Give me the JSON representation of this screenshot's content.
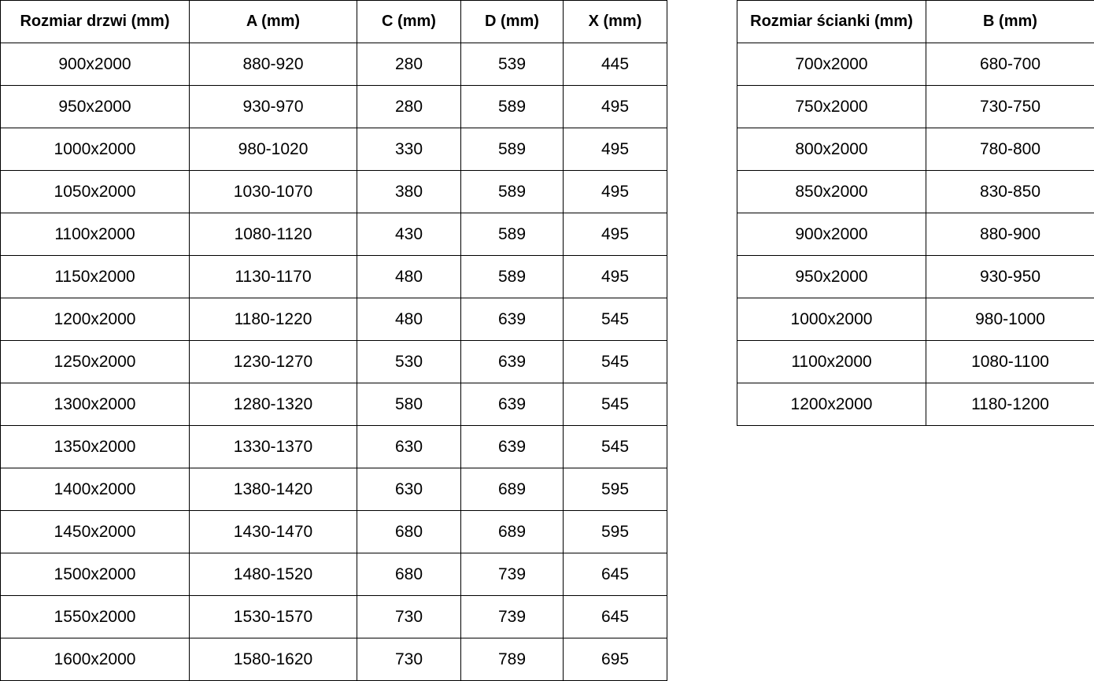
{
  "door_table": {
    "headers": [
      "Rozmiar drzwi (mm)",
      "A (mm)",
      "C (mm)",
      "D (mm)",
      "X (mm)"
    ],
    "rows": [
      [
        "900x2000",
        "880-920",
        "280",
        "539",
        "445"
      ],
      [
        "950x2000",
        "930-970",
        "280",
        "589",
        "495"
      ],
      [
        "1000x2000",
        "980-1020",
        "330",
        "589",
        "495"
      ],
      [
        "1050x2000",
        "1030-1070",
        "380",
        "589",
        "495"
      ],
      [
        "1100x2000",
        "1080-1120",
        "430",
        "589",
        "495"
      ],
      [
        "1150x2000",
        "1130-1170",
        "480",
        "589",
        "495"
      ],
      [
        "1200x2000",
        "1180-1220",
        "480",
        "639",
        "545"
      ],
      [
        "1250x2000",
        "1230-1270",
        "530",
        "639",
        "545"
      ],
      [
        "1300x2000",
        "1280-1320",
        "580",
        "639",
        "545"
      ],
      [
        "1350x2000",
        "1330-1370",
        "630",
        "639",
        "545"
      ],
      [
        "1400x2000",
        "1380-1420",
        "630",
        "689",
        "595"
      ],
      [
        "1450x2000",
        "1430-1470",
        "680",
        "689",
        "595"
      ],
      [
        "1500x2000",
        "1480-1520",
        "680",
        "739",
        "645"
      ],
      [
        "1550x2000",
        "1530-1570",
        "730",
        "739",
        "645"
      ],
      [
        "1600x2000",
        "1580-1620",
        "730",
        "789",
        "695"
      ]
    ]
  },
  "wall_table": {
    "headers": [
      "Rozmiar ścianki (mm)",
      "B (mm)"
    ],
    "rows": [
      [
        "700x2000",
        "680-700"
      ],
      [
        "750x2000",
        "730-750"
      ],
      [
        "800x2000",
        "780-800"
      ],
      [
        "850x2000",
        "830-850"
      ],
      [
        "900x2000",
        "880-900"
      ],
      [
        "950x2000",
        "930-950"
      ],
      [
        "1000x2000",
        "980-1000"
      ],
      [
        "1100x2000",
        "1080-1100"
      ],
      [
        "1200x2000",
        "1180-1200"
      ]
    ]
  }
}
